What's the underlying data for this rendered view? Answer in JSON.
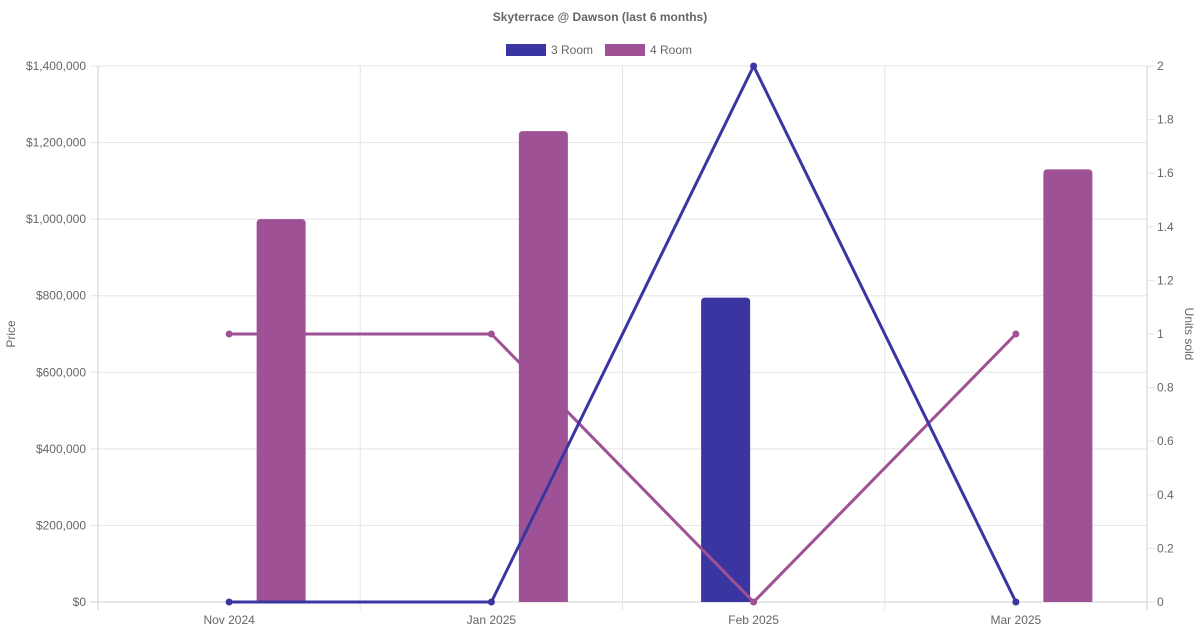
{
  "chart_data": {
    "type": "bar",
    "title": "Skyterrace @ Dawson (last 6 months)",
    "categories": [
      "Nov 2024",
      "Jan 2025",
      "Feb 2025",
      "Mar 2025"
    ],
    "y_left": {
      "label": "Price",
      "range": [
        0,
        1400000
      ],
      "ticks": [
        "$0",
        "$200,000",
        "$400,000",
        "$600,000",
        "$800,000",
        "$1,000,000",
        "$1,200,000",
        "$1,400,000"
      ]
    },
    "y_right": {
      "label": "Units sold",
      "range": [
        0,
        2
      ],
      "ticks": [
        "0",
        "0.2",
        "0.4",
        "0.6",
        "0.8",
        "1",
        "1.2",
        "1.4",
        "1.6",
        "1.8",
        "2"
      ]
    },
    "series": [
      {
        "name": "3 Room",
        "color": "#3a35a0",
        "price": [
          null,
          null,
          795000,
          null
        ],
        "units": [
          0,
          0,
          2,
          0
        ]
      },
      {
        "name": "4 Room",
        "color": "#9e5295",
        "price": [
          1000000,
          1230000,
          null,
          1130000
        ],
        "units": [
          1,
          1,
          0,
          1
        ]
      }
    ],
    "legend_position": "top-center",
    "grid": true
  }
}
